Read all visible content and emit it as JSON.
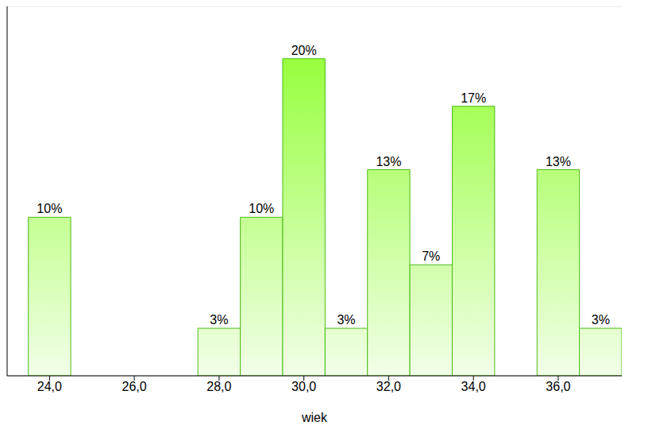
{
  "chart_data": {
    "type": "histogram",
    "x_label": "wiek",
    "bins": [
      23.5,
      24.5,
      25.5,
      26.5,
      27.5,
      28.5,
      29.5,
      30.5,
      31.5,
      32.5,
      33.5,
      34.5,
      35.5,
      36.5,
      37.5
    ],
    "values": [
      10,
      0,
      0,
      0,
      3,
      10,
      20,
      3,
      13,
      7,
      17,
      0,
      13,
      3
    ],
    "value_labels": [
      "10%",
      null,
      null,
      null,
      "3%",
      "10%",
      "20%",
      "3%",
      "13%",
      "7%",
      "17%",
      null,
      "13%",
      "3%"
    ],
    "color": "#4cbb17",
    "xlim": [
      23,
      37.5
    ],
    "xticks": [
      {
        "value": 24,
        "label": "24,0"
      },
      {
        "value": 26,
        "label": "26,0"
      },
      {
        "value": 28,
        "label": "28,0"
      },
      {
        "value": 30,
        "label": "30,0"
      },
      {
        "value": 32,
        "label": "32,0"
      },
      {
        "value": 34,
        "label": "34,0"
      },
      {
        "value": 36,
        "label": "36,0"
      }
    ],
    "ylim": [
      0,
      23.3
    ],
    "yticks": [
      3.333,
      6.667,
      10,
      13.333,
      16.667,
      20
    ],
    "grid": true,
    "data_labels": true,
    "tick_labels": "x"
  }
}
